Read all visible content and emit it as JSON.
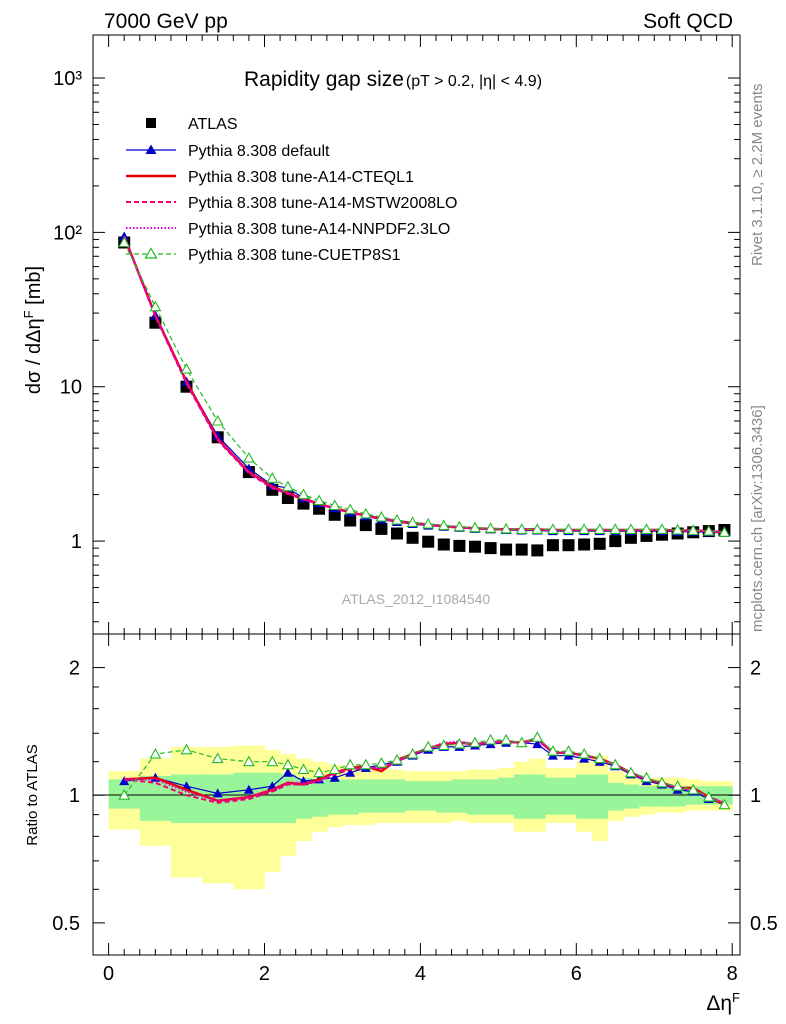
{
  "header": {
    "left": "7000 GeV pp",
    "right": "Soft QCD"
  },
  "side": {
    "rivet": "Rivet 3.1.10, ≥ 2.2M events",
    "mcplots": "mcplots.cern.ch [arXiv:1306.3436]"
  },
  "main": {
    "title_main": "Rapidity gap size",
    "title_cuts": "(pT > 0.2, |η| < 4.9)",
    "ylabel": "dσ / dΔη^F [mb]",
    "analysis_id": "ATLAS_2012_I1084540",
    "yticks": [
      {
        "value": 1000,
        "label": "10³"
      },
      {
        "value": 100,
        "label": "10²"
      },
      {
        "value": 10,
        "label": "10"
      },
      {
        "value": 1,
        "label": "1"
      }
    ]
  },
  "ratio": {
    "ylabel": "Ratio to ATLAS",
    "yticks": [
      {
        "value": 2,
        "label": "2"
      },
      {
        "value": 1,
        "label": "1"
      },
      {
        "value": 0.5,
        "label": "0.5"
      }
    ]
  },
  "xaxis": {
    "label": "Δη^F",
    "ticks": [
      {
        "value": 0,
        "label": "0"
      },
      {
        "value": 2,
        "label": "2"
      },
      {
        "value": 4,
        "label": "4"
      },
      {
        "value": 6,
        "label": "6"
      },
      {
        "value": 8,
        "label": "8"
      }
    ]
  },
  "legend": [
    {
      "key": "atlas",
      "label": "ATLAS"
    },
    {
      "key": "default",
      "label": "Pythia 8.308 default"
    },
    {
      "key": "cteql1",
      "label": "Pythia 8.308 tune-A14-CTEQL1"
    },
    {
      "key": "mstw",
      "label": "Pythia 8.308 tune-A14-MSTW2008LO"
    },
    {
      "key": "nnpdf",
      "label": "Pythia 8.308 tune-A14-NNPDF2.3LO"
    },
    {
      "key": "cuetp",
      "label": "Pythia 8.308 tune-CUETP8S1"
    }
  ],
  "colors": {
    "default": "#0000cc",
    "cteql1": "#ee0000",
    "mstw": "#ee0077",
    "nnpdf": "#dd00dd",
    "cuetp": "#22bb22",
    "band_inner": "#99f599",
    "band_outer": "#ffff99",
    "side_text": "#888888",
    "watermark": "#aaaaaa"
  },
  "chart_data": [
    {
      "type": "scatter",
      "panel": "main",
      "title": "Rapidity gap size",
      "xlabel": "Δη^F",
      "ylabel": "dσ / dΔη^F [mb]",
      "yscale": "log",
      "xlim": [
        -0.2,
        8.1
      ],
      "ylim": [
        0.25,
        1900
      ],
      "legend_position": "top-left",
      "x": [
        0.2,
        0.6,
        1.0,
        1.4,
        1.8,
        2.1,
        2.3,
        2.5,
        2.7,
        2.9,
        3.1,
        3.3,
        3.5,
        3.7,
        3.9,
        4.1,
        4.3,
        4.5,
        4.7,
        4.9,
        5.1,
        5.3,
        5.5,
        5.7,
        5.9,
        6.1,
        6.3,
        6.5,
        6.7,
        6.9,
        7.1,
        7.3,
        7.5,
        7.7,
        7.9
      ],
      "series": [
        {
          "name": "ATLAS",
          "key": "atlas",
          "values": [
            86,
            26,
            10,
            4.7,
            2.8,
            2.15,
            1.9,
            1.75,
            1.62,
            1.48,
            1.36,
            1.27,
            1.2,
            1.12,
            1.05,
            0.99,
            0.95,
            0.93,
            0.92,
            0.9,
            0.88,
            0.88,
            0.87,
            0.94,
            0.94,
            0.95,
            0.96,
            1.0,
            1.05,
            1.08,
            1.1,
            1.12,
            1.14,
            1.16,
            1.18
          ]
        },
        {
          "name": "Pythia 8.308 default",
          "key": "default",
          "values": [
            94,
            29,
            10.8,
            4.8,
            2.95,
            2.3,
            2.2,
            1.9,
            1.76,
            1.63,
            1.53,
            1.45,
            1.38,
            1.33,
            1.29,
            1.26,
            1.24,
            1.22,
            1.2,
            1.19,
            1.18,
            1.17,
            1.17,
            1.16,
            1.16,
            1.16,
            1.16,
            1.16,
            1.16,
            1.16,
            1.16,
            1.15,
            1.15,
            1.14,
            1.13
          ]
        },
        {
          "name": "Pythia 8.308 tune-A14-CTEQL1",
          "key": "cteql1",
          "values": [
            94,
            29,
            10.8,
            4.6,
            2.8,
            2.25,
            2.05,
            1.88,
            1.74,
            1.63,
            1.54,
            1.46,
            1.4,
            1.35,
            1.31,
            1.28,
            1.25,
            1.23,
            1.21,
            1.2,
            1.19,
            1.19,
            1.19,
            1.18,
            1.18,
            1.18,
            1.18,
            1.18,
            1.18,
            1.18,
            1.18,
            1.17,
            1.17,
            1.16,
            1.14
          ]
        },
        {
          "name": "Pythia 8.308 tune-A14-MSTW2008LO",
          "key": "mstw",
          "values": [
            94,
            28.5,
            10.5,
            4.5,
            2.75,
            2.2,
            2.02,
            1.86,
            1.73,
            1.62,
            1.53,
            1.45,
            1.39,
            1.34,
            1.3,
            1.27,
            1.24,
            1.22,
            1.21,
            1.2,
            1.19,
            1.19,
            1.19,
            1.18,
            1.18,
            1.18,
            1.18,
            1.18,
            1.18,
            1.18,
            1.18,
            1.17,
            1.17,
            1.16,
            1.14
          ]
        },
        {
          "name": "Pythia 8.308 tune-A14-NNPDF2.3LO",
          "key": "nnpdf",
          "values": [
            94,
            29,
            10.6,
            4.55,
            2.78,
            2.22,
            2.04,
            1.87,
            1.74,
            1.63,
            1.54,
            1.46,
            1.4,
            1.35,
            1.31,
            1.28,
            1.25,
            1.23,
            1.21,
            1.2,
            1.19,
            1.19,
            1.19,
            1.18,
            1.18,
            1.18,
            1.18,
            1.18,
            1.18,
            1.18,
            1.18,
            1.17,
            1.17,
            1.16,
            1.14
          ]
        },
        {
          "name": "Pythia 8.308 tune-CUETP8S1",
          "key": "cuetp",
          "values": [
            86,
            33,
            13,
            6,
            3.45,
            2.55,
            2.25,
            2.0,
            1.83,
            1.7,
            1.6,
            1.5,
            1.43,
            1.37,
            1.32,
            1.29,
            1.26,
            1.24,
            1.22,
            1.21,
            1.2,
            1.19,
            1.19,
            1.19,
            1.19,
            1.19,
            1.19,
            1.19,
            1.19,
            1.19,
            1.19,
            1.18,
            1.17,
            1.16,
            1.14
          ]
        }
      ]
    },
    {
      "type": "line",
      "panel": "ratio",
      "ylabel": "Ratio to ATLAS",
      "xlabel": "Δη^F",
      "yscale": "log",
      "xlim": [
        -0.2,
        8.1
      ],
      "ylim": [
        0.42,
        2.4
      ],
      "reference_line": 1,
      "bin_edges": [
        0.0,
        0.4,
        0.8,
        1.2,
        1.6,
        2.0,
        2.2,
        2.4,
        2.6,
        2.8,
        3.0,
        3.2,
        3.4,
        3.6,
        3.8,
        4.0,
        4.2,
        4.4,
        4.6,
        4.8,
        5.0,
        5.2,
        5.4,
        5.6,
        5.8,
        6.0,
        6.2,
        6.4,
        6.6,
        6.8,
        7.0,
        7.2,
        7.4,
        7.6,
        7.8,
        8.0
      ],
      "band_inner": {
        "lo": [
          0.93,
          0.87,
          0.86,
          0.86,
          0.86,
          0.86,
          0.86,
          0.88,
          0.89,
          0.9,
          0.9,
          0.91,
          0.91,
          0.91,
          0.92,
          0.92,
          0.91,
          0.91,
          0.9,
          0.9,
          0.9,
          0.88,
          0.88,
          0.9,
          0.9,
          0.88,
          0.88,
          0.92,
          0.93,
          0.94,
          0.94,
          0.94,
          0.95,
          0.95,
          0.95
        ],
        "hi": [
          1.09,
          1.11,
          1.12,
          1.12,
          1.13,
          1.13,
          1.12,
          1.1,
          1.09,
          1.09,
          1.09,
          1.09,
          1.09,
          1.09,
          1.08,
          1.08,
          1.08,
          1.09,
          1.09,
          1.09,
          1.1,
          1.12,
          1.12,
          1.1,
          1.1,
          1.12,
          1.12,
          1.07,
          1.06,
          1.05,
          1.05,
          1.05,
          1.05,
          1.05,
          1.05
        ]
      },
      "band_outer": {
        "lo": [
          0.83,
          0.76,
          0.64,
          0.62,
          0.6,
          0.66,
          0.72,
          0.78,
          0.82,
          0.84,
          0.85,
          0.85,
          0.86,
          0.86,
          0.86,
          0.86,
          0.86,
          0.87,
          0.86,
          0.86,
          0.86,
          0.82,
          0.82,
          0.86,
          0.86,
          0.82,
          0.78,
          0.87,
          0.89,
          0.9,
          0.91,
          0.91,
          0.92,
          0.92,
          0.92
        ],
        "hi": [
          1.14,
          1.22,
          1.3,
          1.3,
          1.31,
          1.28,
          1.25,
          1.22,
          1.2,
          1.18,
          1.17,
          1.16,
          1.15,
          1.15,
          1.14,
          1.14,
          1.14,
          1.14,
          1.15,
          1.15,
          1.16,
          1.2,
          1.22,
          1.16,
          1.16,
          1.2,
          1.24,
          1.14,
          1.12,
          1.1,
          1.1,
          1.1,
          1.09,
          1.08,
          1.08
        ]
      },
      "x": [
        0.2,
        0.6,
        1.0,
        1.4,
        1.8,
        2.1,
        2.3,
        2.5,
        2.7,
        2.9,
        3.1,
        3.3,
        3.5,
        3.7,
        3.9,
        4.1,
        4.3,
        4.5,
        4.7,
        4.9,
        5.1,
        5.3,
        5.5,
        5.7,
        5.9,
        6.1,
        6.3,
        6.5,
        6.7,
        6.9,
        7.1,
        7.3,
        7.5,
        7.7,
        7.9
      ],
      "series": [
        {
          "name": "Pythia 8.308 default",
          "key": "default",
          "values": [
            1.08,
            1.1,
            1.05,
            1.01,
            1.03,
            1.05,
            1.13,
            1.08,
            1.09,
            1.1,
            1.13,
            1.16,
            1.18,
            1.2,
            1.24,
            1.28,
            1.3,
            1.3,
            1.31,
            1.32,
            1.33,
            1.33,
            1.32,
            1.24,
            1.24,
            1.22,
            1.2,
            1.17,
            1.12,
            1.08,
            1.06,
            1.03,
            1.02,
            0.98,
            0.95
          ]
        },
        {
          "name": "Pythia 8.308 tune-A14-CTEQL1",
          "key": "cteql1",
          "values": [
            1.09,
            1.1,
            1.03,
            0.97,
            0.99,
            1.03,
            1.07,
            1.06,
            1.09,
            1.13,
            1.16,
            1.17,
            1.14,
            1.21,
            1.25,
            1.29,
            1.32,
            1.33,
            1.32,
            1.33,
            1.34,
            1.33,
            1.36,
            1.26,
            1.26,
            1.24,
            1.22,
            1.18,
            1.13,
            1.09,
            1.07,
            1.04,
            1.04,
            0.99,
            0.95
          ]
        },
        {
          "name": "Pythia 8.308 tune-A14-MSTW2008LO",
          "key": "mstw",
          "values": [
            1.09,
            1.07,
            1.0,
            0.96,
            0.98,
            1.02,
            1.06,
            1.06,
            1.08,
            1.12,
            1.15,
            1.16,
            1.16,
            1.2,
            1.25,
            1.29,
            1.31,
            1.33,
            1.32,
            1.33,
            1.34,
            1.33,
            1.35,
            1.26,
            1.26,
            1.24,
            1.22,
            1.18,
            1.13,
            1.09,
            1.07,
            1.04,
            1.03,
            0.99,
            0.96
          ]
        },
        {
          "name": "Pythia 8.308 tune-A14-NNPDF2.3LO",
          "key": "nnpdf",
          "values": [
            1.09,
            1.09,
            1.02,
            0.97,
            0.99,
            1.03,
            1.07,
            1.07,
            1.08,
            1.13,
            1.16,
            1.16,
            1.16,
            1.2,
            1.25,
            1.29,
            1.33,
            1.34,
            1.32,
            1.33,
            1.34,
            1.33,
            1.35,
            1.26,
            1.26,
            1.24,
            1.22,
            1.18,
            1.13,
            1.09,
            1.07,
            1.04,
            1.03,
            0.99,
            0.96
          ]
        },
        {
          "name": "Pythia 8.308 tune-CUETP8S1",
          "key": "cuetp",
          "values": [
            1.0,
            1.25,
            1.28,
            1.22,
            1.2,
            1.2,
            1.18,
            1.15,
            1.13,
            1.15,
            1.18,
            1.18,
            1.19,
            1.21,
            1.25,
            1.3,
            1.31,
            1.32,
            1.33,
            1.35,
            1.35,
            1.33,
            1.37,
            1.27,
            1.27,
            1.25,
            1.22,
            1.18,
            1.13,
            1.1,
            1.07,
            1.05,
            1.03,
            0.99,
            0.95
          ]
        }
      ]
    }
  ]
}
